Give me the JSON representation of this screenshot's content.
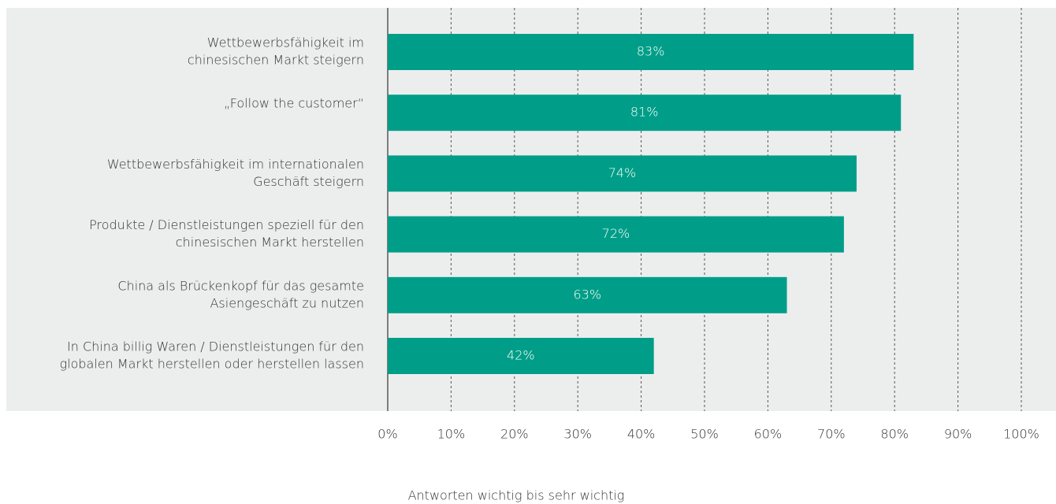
{
  "chart_data": {
    "type": "bar",
    "orientation": "horizontal",
    "categories": [
      [
        "Wettbewerbsfähigkeit im",
        "chinesischen Markt steigern"
      ],
      [
        "„Follow the customer“"
      ],
      [
        "Wettbewerbsfähigkeit im internationalen",
        "Geschäft steigern"
      ],
      [
        "Produkte / Dienstleistungen speziell für den",
        "chinesischen Markt herstellen"
      ],
      [
        "China als Brückenkopf für das gesamte",
        "Asiengeschäft zu nutzen"
      ],
      [
        "In China billig Waren / Dienstleistungen für den",
        "globalen Markt herstellen oder herstellen lassen"
      ]
    ],
    "values": [
      83,
      81,
      74,
      72,
      63,
      42
    ],
    "value_labels": [
      "83%",
      "81%",
      "74%",
      "72%",
      "63%",
      "42%"
    ],
    "color": "#009e88",
    "xlim": [
      0,
      100
    ],
    "xticks": [
      {
        "value": 0,
        "label": "0%"
      },
      {
        "value": 10,
        "label": "10%"
      },
      {
        "value": 20,
        "label": "20%"
      },
      {
        "value": 30,
        "label": "30%"
      },
      {
        "value": 40,
        "label": "40%"
      },
      {
        "value": 50,
        "label": "50%"
      },
      {
        "value": 60,
        "label": "60%"
      },
      {
        "value": 70,
        "label": "70%"
      },
      {
        "value": 80,
        "label": "80%"
      },
      {
        "value": 90,
        "label": "90%"
      },
      {
        "value": 100,
        "label": "100%"
      }
    ],
    "grid": true,
    "x_label": "Antworten wichtig bis sehr wichtig"
  }
}
